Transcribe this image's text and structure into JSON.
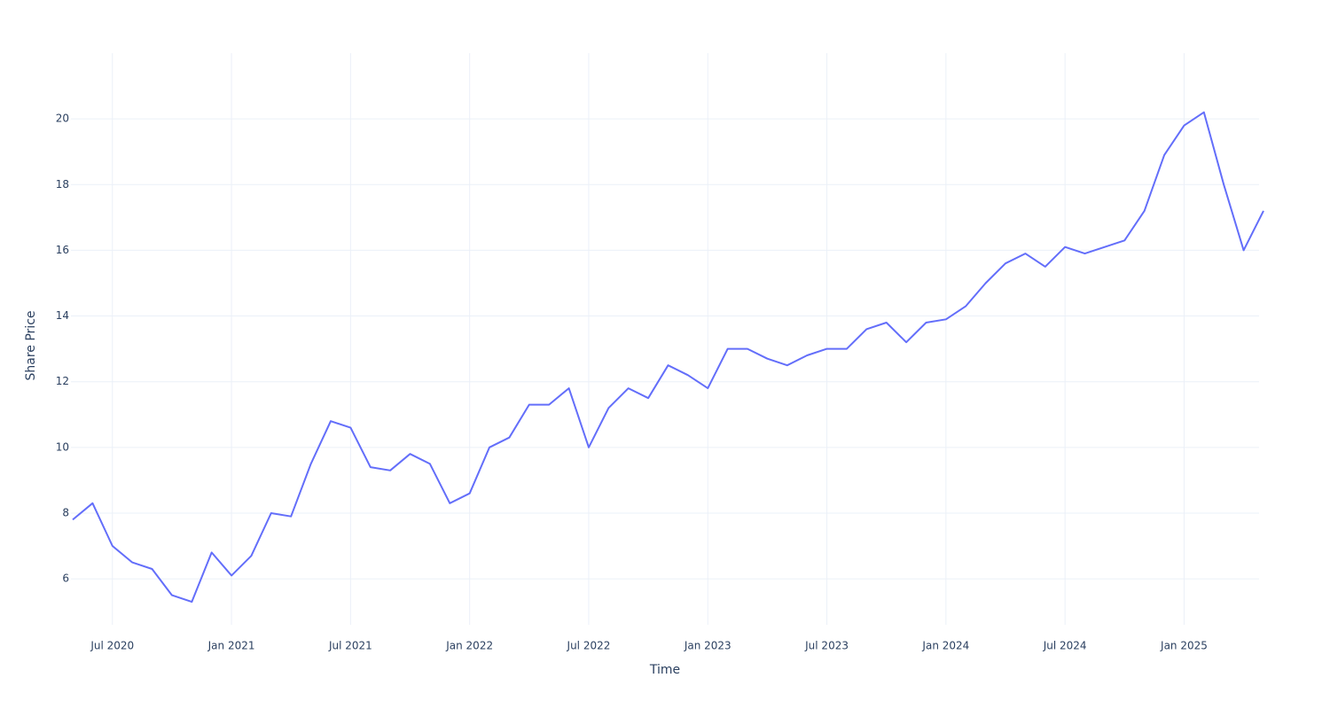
{
  "chart_data": {
    "type": "line",
    "x_label": "Time",
    "y_label": "Share Price",
    "x": [
      "2020-05",
      "2020-06",
      "2020-07",
      "2020-08",
      "2020-09",
      "2020-10",
      "2020-11",
      "2020-12",
      "2021-01",
      "2021-02",
      "2021-03",
      "2021-04",
      "2021-05",
      "2021-06",
      "2021-07",
      "2021-08",
      "2021-09",
      "2021-10",
      "2021-11",
      "2021-12",
      "2022-01",
      "2022-02",
      "2022-03",
      "2022-04",
      "2022-05",
      "2022-06",
      "2022-07",
      "2022-08",
      "2022-09",
      "2022-10",
      "2022-11",
      "2022-12",
      "2023-01",
      "2023-02",
      "2023-03",
      "2023-04",
      "2023-05",
      "2023-06",
      "2023-07",
      "2023-08",
      "2023-09",
      "2023-10",
      "2023-11",
      "2023-12",
      "2024-01",
      "2024-02",
      "2024-03",
      "2024-04",
      "2024-05",
      "2024-06",
      "2024-07",
      "2024-08",
      "2024-09",
      "2024-10",
      "2024-11",
      "2024-12",
      "2025-01",
      "2025-02",
      "2025-03",
      "2025-04",
      "2025-05"
    ],
    "series": [
      {
        "name": "Share Price",
        "color": "#636efa",
        "values": [
          7.8,
          8.3,
          7.0,
          6.5,
          6.3,
          5.5,
          5.3,
          6.8,
          6.1,
          6.7,
          8.0,
          7.9,
          9.5,
          10.8,
          10.6,
          9.4,
          9.3,
          9.8,
          9.5,
          8.3,
          8.6,
          10.0,
          10.3,
          11.3,
          11.3,
          11.8,
          10.0,
          11.2,
          11.8,
          11.5,
          12.5,
          12.2,
          11.8,
          13.0,
          13.0,
          12.7,
          12.5,
          12.8,
          13.0,
          13.0,
          13.6,
          13.8,
          13.2,
          13.8,
          13.9,
          14.3,
          15.0,
          15.6,
          15.9,
          15.5,
          16.1,
          15.9,
          16.1,
          16.3,
          17.2,
          18.9,
          19.8,
          20.2,
          18.0,
          16.0,
          17.2
        ]
      }
    ],
    "xlim": [
      "2020-05",
      "2025-05"
    ],
    "xticks": [
      {
        "value": "2020-07",
        "label": "Jul 2020"
      },
      {
        "value": "2021-01",
        "label": "Jan 2021"
      },
      {
        "value": "2021-07",
        "label": "Jul 2021"
      },
      {
        "value": "2022-01",
        "label": "Jan 2022"
      },
      {
        "value": "2022-07",
        "label": "Jul 2022"
      },
      {
        "value": "2023-01",
        "label": "Jan 2023"
      },
      {
        "value": "2023-07",
        "label": "Jul 2023"
      },
      {
        "value": "2024-01",
        "label": "Jan 2024"
      },
      {
        "value": "2024-07",
        "label": "Jul 2024"
      },
      {
        "value": "2025-01",
        "label": "Jan 2025"
      }
    ],
    "ylim": [
      4.6,
      22
    ],
    "yticks": [
      6,
      8,
      10,
      12,
      14,
      16,
      18,
      20
    ],
    "grid": true
  }
}
